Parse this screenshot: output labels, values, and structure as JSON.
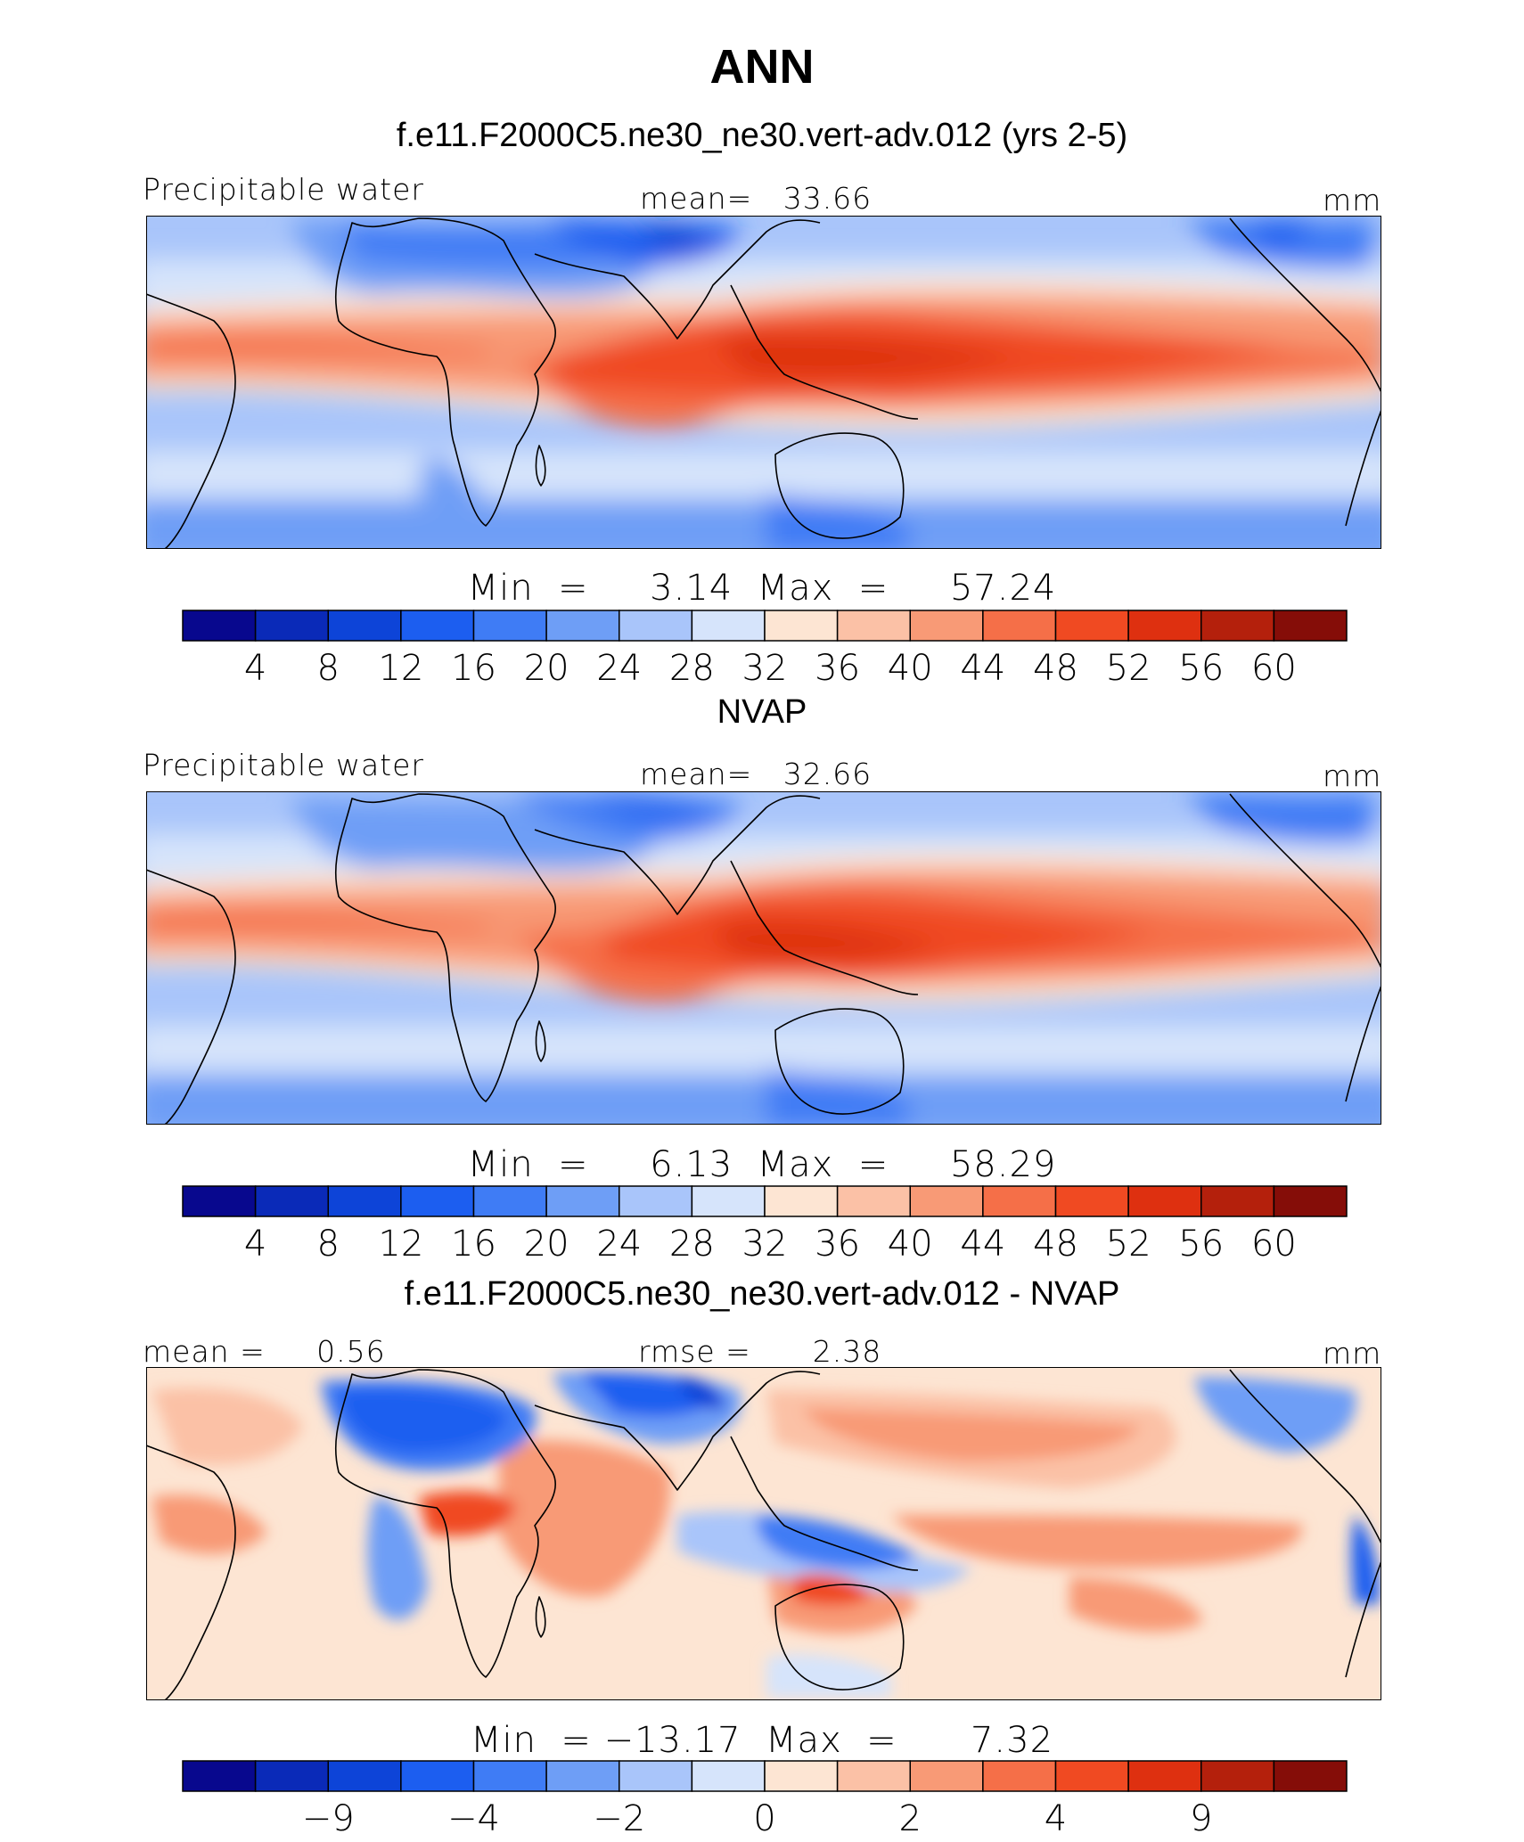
{
  "figure": {
    "title": "ANN"
  },
  "colors": {
    "blue_to_red_scale": [
      "#08088e",
      "#0a2ab8",
      "#0d44d8",
      "#1c5ef0",
      "#3f7cf5",
      "#6e9ef6",
      "#a9c5fa",
      "#d6e4fb",
      "#fde5d3",
      "#fbc1a6",
      "#f89a76",
      "#f56f48",
      "#f04a22",
      "#de3010",
      "#b4200c",
      "#850d08"
    ],
    "land_outline": "#000000"
  },
  "chart_data": [
    {
      "type": "heatmap",
      "panel_title": "f.e11.F2000C5.ne30_ne30.vert-adv.012 (yrs 2-5)",
      "left_label": "Precipitable water",
      "center_label": "mean=   33.66",
      "units": "mm",
      "minmax_label": "Min  =     3.14  Max  =     57.24",
      "min": 3.14,
      "max": 57.24,
      "mean": 33.66,
      "colorbar_ticks": [
        "4",
        "8",
        "12",
        "16",
        "20",
        "24",
        "28",
        "32",
        "36",
        "40",
        "44",
        "48",
        "52",
        "56",
        "60"
      ]
    },
    {
      "type": "heatmap",
      "panel_title": "NVAP",
      "left_label": "Precipitable water",
      "center_label": "mean=   32.66",
      "units": "mm",
      "minmax_label": "Min  =     6.13  Max  =     58.29",
      "min": 6.13,
      "max": 58.29,
      "mean": 32.66,
      "colorbar_ticks": [
        "4",
        "8",
        "12",
        "16",
        "20",
        "24",
        "28",
        "32",
        "36",
        "40",
        "44",
        "48",
        "52",
        "56",
        "60"
      ]
    },
    {
      "type": "heatmap",
      "panel_title": "f.e11.F2000C5.ne30_ne30.vert-adv.012 - NVAP",
      "left_label": "mean =     0.56",
      "center_label": "rmse =      2.38",
      "units": "mm",
      "minmax_label": "Min  = −13.17  Max  =      7.32",
      "min": -13.17,
      "max": 7.32,
      "mean": 0.56,
      "rmse": 2.38,
      "colorbar_ticks": [
        "",
        "−9",
        "",
        "−4",
        "",
        "−2",
        "",
        "0",
        "",
        "2",
        "",
        "4",
        "",
        "9",
        ""
      ]
    }
  ]
}
